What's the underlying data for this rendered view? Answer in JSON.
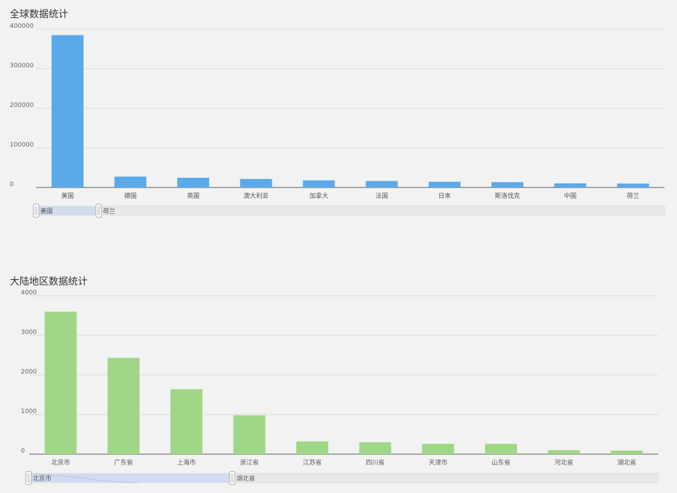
{
  "charts": [
    {
      "title": "全球数据统计",
      "chart_data": {
        "type": "bar",
        "title": "全球数据统计",
        "categories": [
          "美国",
          "德国",
          "英国",
          "澳大利亚",
          "加拿大",
          "法国",
          "日本",
          "斯洛伐克",
          "中国",
          "荷兰"
        ],
        "values": [
          385000,
          27500,
          24500,
          21500,
          18000,
          16500,
          14500,
          13500,
          10500,
          10000
        ],
        "ylim": [
          0,
          400000
        ],
        "yticks": [
          0,
          100000,
          200000,
          300000,
          400000
        ],
        "color": "#5aaaeb",
        "grid": true,
        "slider": {
          "start_label": "美国",
          "end_label": "荷兰"
        }
      }
    },
    {
      "title": "大陆地区数据统计",
      "chart_data": {
        "type": "bar",
        "title": "大陆地区数据统计",
        "categories": [
          "北京市",
          "广东省",
          "上海市",
          "浙江省",
          "江苏省",
          "四川省",
          "天津市",
          "山东省",
          "河北省",
          "湖北省"
        ],
        "values": [
          3600,
          2430,
          1640,
          980,
          320,
          300,
          260,
          260,
          100,
          90
        ],
        "ylim": [
          0,
          4000
        ],
        "yticks": [
          0,
          1000,
          2000,
          3000,
          4000
        ],
        "color": "#a0d787",
        "grid": true,
        "slider": {
          "start_label": "北京市",
          "end_label": "湖北省"
        }
      }
    }
  ]
}
